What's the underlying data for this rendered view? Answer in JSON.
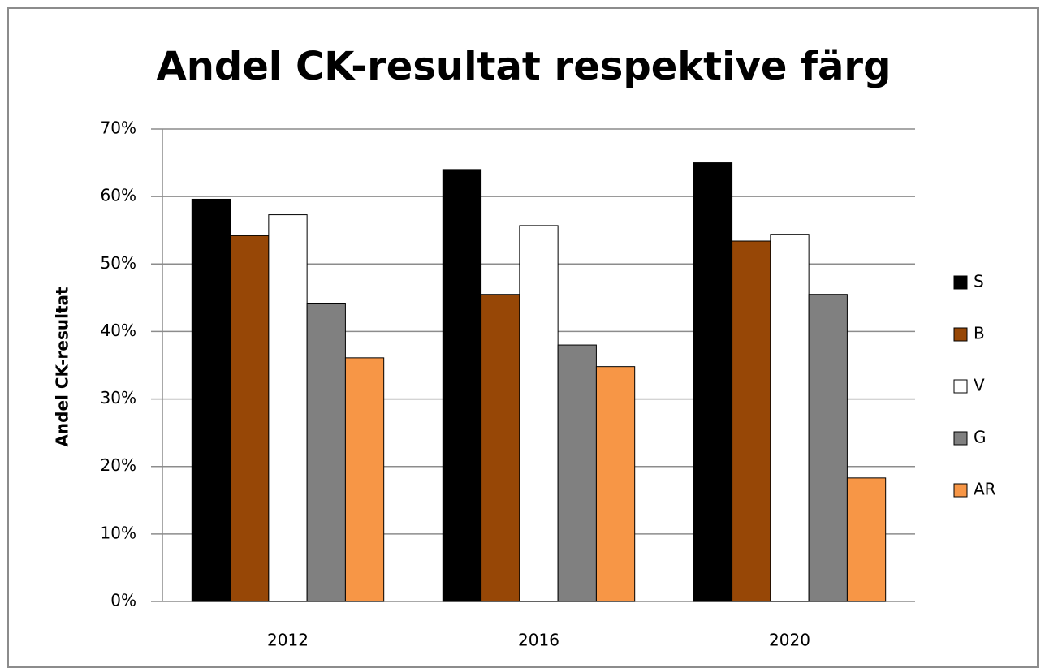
{
  "chart_data": {
    "type": "bar",
    "title": "Andel CK-resultat respektive färg",
    "y_label": "Andel CK-resultat",
    "categories": [
      "2012",
      "2016",
      "2020"
    ],
    "series": [
      {
        "name": "S",
        "color": "#000000",
        "values": [
          59.6,
          64.0,
          65.0
        ]
      },
      {
        "name": "B",
        "color": "#974706",
        "values": [
          54.2,
          45.5,
          53.4
        ]
      },
      {
        "name": "V",
        "color": "#ffffff",
        "values": [
          57.3,
          55.7,
          54.4
        ]
      },
      {
        "name": "G",
        "color": "#808080",
        "values": [
          44.2,
          38.0,
          45.5
        ]
      },
      {
        "name": "AR",
        "color": "#f79646",
        "values": [
          36.1,
          34.8,
          18.3
        ]
      }
    ],
    "ylim": [
      0,
      70
    ],
    "yticks": [
      {
        "value": 0,
        "label": "0%"
      },
      {
        "value": 10,
        "label": "10%"
      },
      {
        "value": 20,
        "label": "20%"
      },
      {
        "value": 30,
        "label": "30%"
      },
      {
        "value": 40,
        "label": "40%"
      },
      {
        "value": 50,
        "label": "50%"
      },
      {
        "value": 60,
        "label": "60%"
      },
      {
        "value": 70,
        "label": "70%"
      }
    ],
    "grid": true,
    "legend": "right"
  }
}
